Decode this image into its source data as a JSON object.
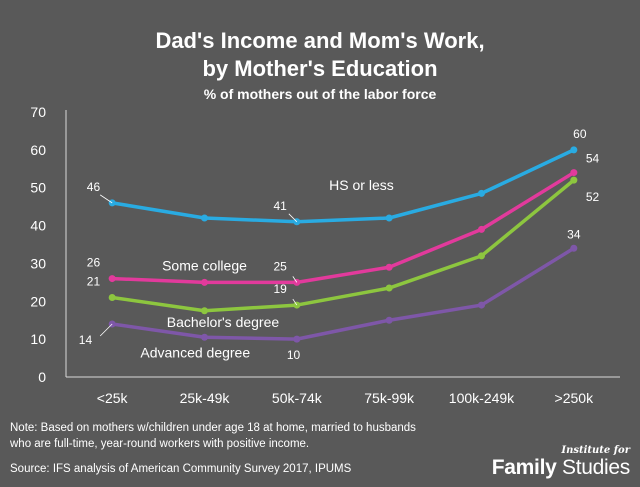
{
  "chart_data": {
    "type": "line",
    "title_line1": "Dad's Income and Mom's Work,",
    "title_line2": "by Mother's Education",
    "subtitle": "% of mothers out of the labor force",
    "categories": [
      "<25k",
      "25k-49k",
      "50k-74k",
      "75k-99k",
      "100k-249k",
      ">250k"
    ],
    "ylim": [
      0,
      70
    ],
    "yticks": [
      0,
      10,
      20,
      30,
      40,
      50,
      60,
      70
    ],
    "series": [
      {
        "name": "HS or less",
        "color": "#29abe2",
        "values": [
          46,
          42,
          41,
          42,
          48.5,
          60
        ],
        "labels": [
          "46",
          "",
          "41",
          "",
          "",
          "60"
        ]
      },
      {
        "name": "Some college",
        "color": "#e23a9c",
        "values": [
          26,
          25,
          25,
          29,
          39,
          54
        ],
        "labels": [
          "26",
          "",
          "25",
          "",
          "",
          "54"
        ]
      },
      {
        "name": "Bachelor's degree",
        "color": "#8dc63f",
        "values": [
          21,
          17.5,
          19,
          23.5,
          32,
          52
        ],
        "labels": [
          "21",
          "",
          "19",
          "",
          "",
          "52"
        ]
      },
      {
        "name": "Advanced degree",
        "color": "#7e57a8",
        "values": [
          14,
          10.5,
          10,
          15,
          19,
          34
        ],
        "labels": [
          "14",
          "",
          "10",
          "",
          "",
          "34"
        ]
      }
    ]
  },
  "note_line1": "Note: Based on mothers w/children under age 18 at home, married to husbands",
  "note_line2": "who are full-time, year-round workers with positive income.",
  "source": "Source: IFS analysis of American Community Survey 2017, IPUMS",
  "logo": {
    "top": "Institute for",
    "word1": "Family",
    "word2": "Studies"
  }
}
